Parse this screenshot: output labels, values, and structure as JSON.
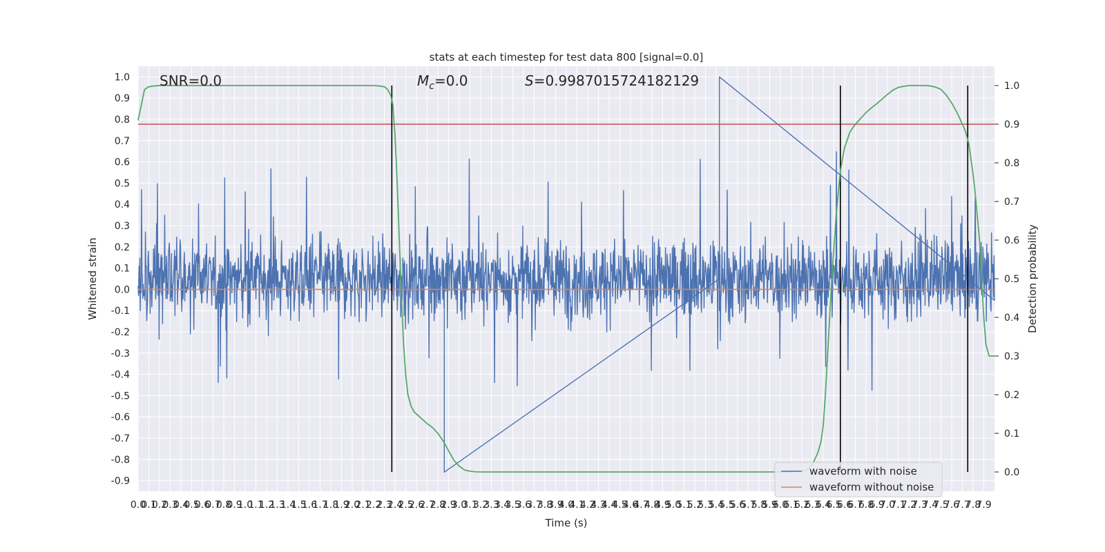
{
  "chart_data": {
    "type": "line",
    "title": "stats at each timestep for test data 800 [signal=0.0]",
    "xlabel": "Time (s)",
    "ylabel_left": "Whitened strain",
    "ylabel_right": "Detection probability",
    "xlim": [
      0.0,
      8.0
    ],
    "ylim_left": [
      -0.95,
      1.05
    ],
    "ylim_right": [
      -0.05,
      1.05
    ],
    "x_ticks": [
      "0.0",
      "0.1",
      "0.2",
      "0.3",
      "0.4",
      "0.5",
      "0.6",
      "0.7",
      "0.8",
      "0.9",
      "1.0",
      "1.1",
      "1.2",
      "1.3",
      "1.4",
      "1.5",
      "1.6",
      "1.7",
      "1.8",
      "1.9",
      "2.0",
      "2.1",
      "2.2",
      "2.3",
      "2.4",
      "2.5",
      "2.6",
      "2.7",
      "2.8",
      "2.9",
      "3.0",
      "3.1",
      "3.2",
      "3.3",
      "3.4",
      "3.5",
      "3.6",
      "3.7",
      "3.8",
      "3.9",
      "4.0",
      "4.1",
      "4.2",
      "4.3",
      "4.4",
      "4.5",
      "4.6",
      "4.7",
      "4.8",
      "4.9",
      "5.0",
      "5.1",
      "5.2",
      "5.3",
      "5.4",
      "5.5",
      "5.6",
      "5.7",
      "5.8",
      "5.9",
      "6.0",
      "6.1",
      "6.2",
      "6.3",
      "6.4",
      "6.5",
      "6.6",
      "6.7",
      "6.8",
      "6.9",
      "7.0",
      "7.1",
      "7.2",
      "7.3",
      "7.4",
      "7.5",
      "7.6",
      "7.7",
      "7.8",
      "7.9"
    ],
    "y_ticks_left": [
      "1.0",
      "0.9",
      "0.8",
      "0.7",
      "0.6",
      "0.5",
      "0.4",
      "0.3",
      "0.2",
      "0.1",
      "0.0",
      "-0.1",
      "-0.2",
      "-0.3",
      "-0.4",
      "-0.5",
      "-0.6",
      "-0.7",
      "-0.8",
      "-0.9"
    ],
    "y_ticks_right": [
      "1.0",
      "0.9",
      "0.8",
      "0.7",
      "0.6",
      "0.5",
      "0.4",
      "0.3",
      "0.2",
      "0.1",
      "0.0"
    ],
    "annotations": {
      "snr": "SNR=0.0",
      "mc_symbol": "M",
      "mc_sub": "c",
      "mc_value": "=0.0",
      "s_symbol": "S",
      "s_value": "=0.9987015724182129"
    },
    "legend": {
      "placement": "lower-right",
      "entries": [
        "waveform with noise",
        "waveform without noise"
      ]
    },
    "series": [
      {
        "name": "waveform with noise",
        "axis": "left",
        "color": "#4c72b0",
        "envelope_max": 1.0,
        "envelope_min": -0.86
      },
      {
        "name": "waveform without noise",
        "axis": "left",
        "color": "#dd8452",
        "value": 0.0
      }
    ],
    "detection_probability": {
      "axis": "right",
      "color": "#55a868",
      "x": [
        0.0,
        0.06,
        0.1,
        0.15,
        0.2,
        0.3,
        0.5,
        1.0,
        1.5,
        2.0,
        2.2,
        2.25,
        2.3,
        2.33,
        2.36,
        2.38,
        2.4,
        2.42,
        2.44,
        2.46,
        2.48,
        2.5,
        2.52,
        2.55,
        2.58,
        2.62,
        2.66,
        2.7,
        2.75,
        2.8,
        2.85,
        2.9,
        2.95,
        3.0,
        3.05,
        3.1,
        3.15,
        3.2,
        3.3,
        3.5,
        4.0,
        4.5,
        5.0,
        5.5,
        6.0,
        6.2,
        6.25,
        6.3,
        6.35,
        6.38,
        6.4,
        6.42,
        6.45,
        6.48,
        6.52,
        6.56,
        6.6,
        6.65,
        6.7,
        6.75,
        6.8,
        6.85,
        6.9,
        6.95,
        7.0,
        7.05,
        7.1,
        7.15,
        7.2,
        7.25,
        7.3,
        7.35,
        7.4,
        7.45,
        7.5,
        7.55,
        7.6,
        7.65,
        7.7,
        7.73,
        7.76,
        7.78,
        7.8,
        7.82,
        7.84,
        7.86,
        7.88,
        7.9,
        7.92,
        7.95,
        8.0
      ],
      "y": [
        0.91,
        0.99,
        0.997,
        0.999,
        1.0,
        1.0,
        1.0,
        1.0,
        1.0,
        1.0,
        1.0,
        0.999,
        0.997,
        0.99,
        0.975,
        0.95,
        0.87,
        0.75,
        0.6,
        0.45,
        0.33,
        0.25,
        0.2,
        0.17,
        0.155,
        0.145,
        0.135,
        0.125,
        0.115,
        0.1,
        0.08,
        0.055,
        0.03,
        0.015,
        0.005,
        0.002,
        0.0005,
        0.0,
        0.0,
        0.0,
        0.0,
        0.0,
        0.0,
        0.0,
        0.0,
        0.002,
        0.006,
        0.02,
        0.05,
        0.08,
        0.12,
        0.2,
        0.35,
        0.5,
        0.66,
        0.78,
        0.84,
        0.88,
        0.9,
        0.915,
        0.93,
        0.942,
        0.953,
        0.965,
        0.977,
        0.988,
        0.995,
        0.998,
        1.0,
        1.0,
        1.0,
        1.0,
        0.999,
        0.996,
        0.99,
        0.975,
        0.955,
        0.93,
        0.9,
        0.88,
        0.85,
        0.81,
        0.77,
        0.72,
        0.66,
        0.6,
        0.5,
        0.4,
        0.33,
        0.3,
        0.3
      ]
    },
    "vertical_lines_x": [
      2.37,
      6.56,
      7.75
    ],
    "threshold_right": 0.9
  }
}
